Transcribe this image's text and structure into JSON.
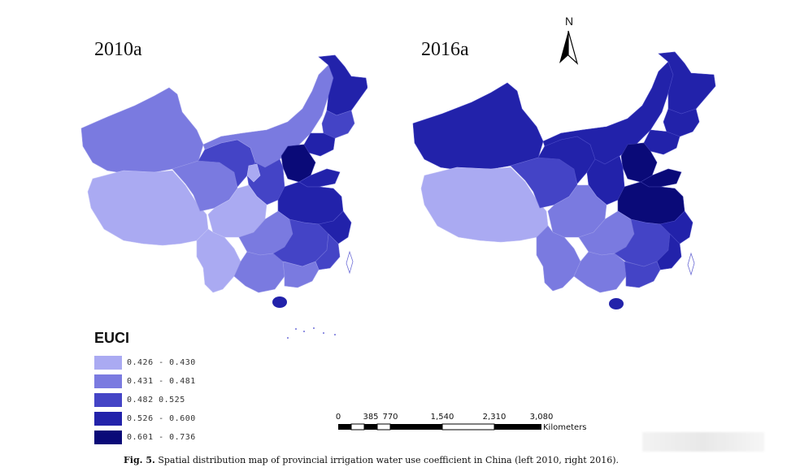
{
  "panels": [
    {
      "title": "2010a"
    },
    {
      "title": "2016a"
    }
  ],
  "north_label": "N",
  "legend": {
    "title": "EUCI",
    "items": [
      {
        "label": "0.426 - 0.430",
        "color": "#aaaaf2"
      },
      {
        "label": "0.431 - 0.481",
        "color": "#7a7ae0"
      },
      {
        "label": "0.482   0.525",
        "color": "#4444c6"
      },
      {
        "label": "0.526 - 0.600",
        "color": "#2222aa"
      },
      {
        "label": "0.601 - 0.736",
        "color": "#0a0a78"
      }
    ]
  },
  "scalebar": {
    "ticks": [
      "0",
      "385",
      "770",
      "1,540",
      "2,310",
      "3,080"
    ],
    "unit": "Kilometers"
  },
  "caption": {
    "prefix": "Fig. 5.",
    "text": "Spatial distribution map of provincial irrigation water use coefficient in China (left 2010, right 2016)."
  }
}
